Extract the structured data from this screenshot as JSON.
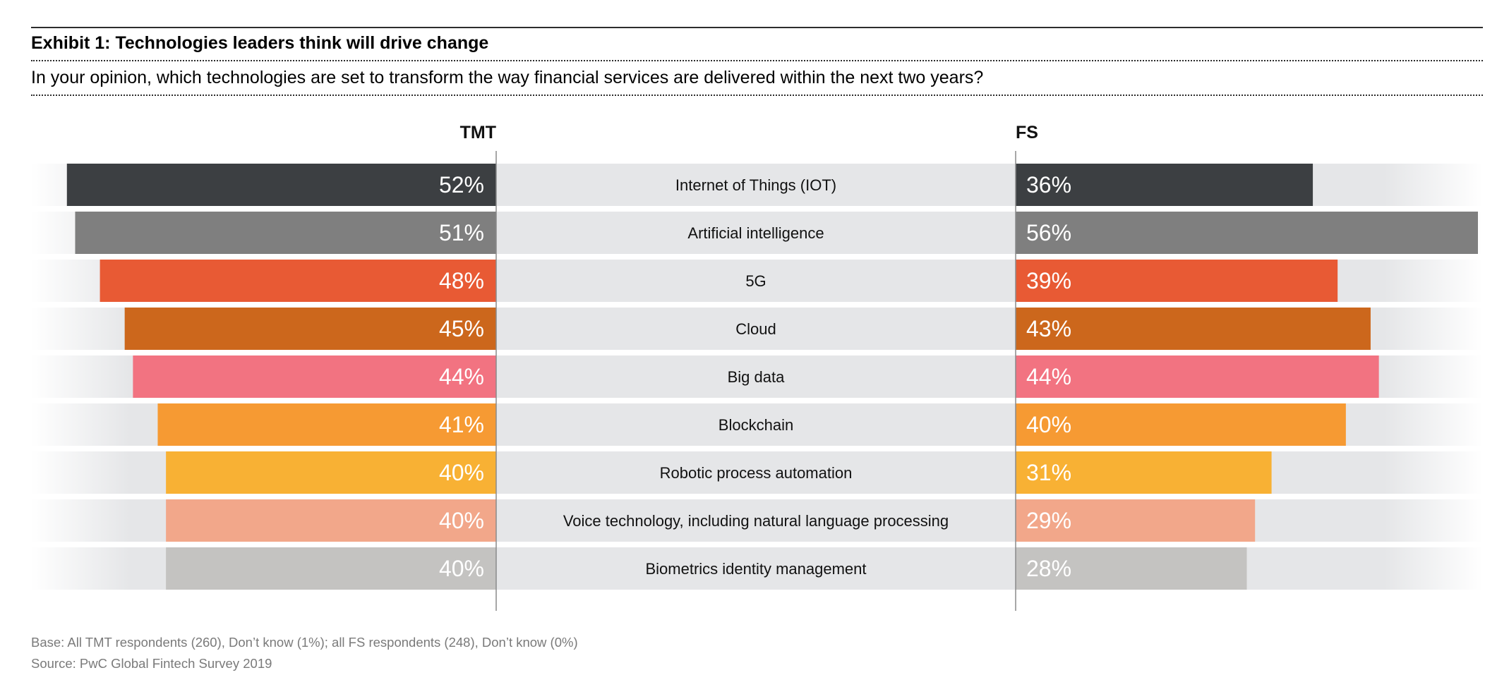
{
  "exhibit": {
    "title": "Exhibit 1: Technologies leaders think will drive change",
    "question": "In your opinion, which technologies are set to transform the way financial services are delivered within the next two years?"
  },
  "chart_data": {
    "type": "bar",
    "title": "Exhibit 1: Technologies leaders think will drive change",
    "subtitle": "In your opinion, which technologies are set to transform the way financial services are delivered within the next two years?",
    "orientation": "horizontal-butterfly",
    "value_format": "percent",
    "xlim": [
      0,
      56
    ],
    "categories": [
      "Internet of Things (IOT)",
      "Artificial intelligence",
      "5G",
      "Cloud",
      "Big data",
      "Blockchain",
      "Robotic process automation",
      "Voice technology, including natural language processing",
      "Biometrics identity management"
    ],
    "series": [
      {
        "name": "TMT",
        "side": "left",
        "values": [
          52,
          51,
          48,
          45,
          44,
          41,
          40,
          40,
          40
        ]
      },
      {
        "name": "FS",
        "side": "right",
        "values": [
          36,
          56,
          39,
          43,
          44,
          40,
          31,
          29,
          28
        ]
      }
    ],
    "bar_colors": [
      "#3c3f42",
      "#7f7f7f",
      "#e85a34",
      "#cc671c",
      "#f27381",
      "#f69a33",
      "#f8b134",
      "#f2a78a",
      "#c4c3c1"
    ],
    "row_band_color": "#e5e6e8",
    "divider_color": "#8a8a8a"
  },
  "footer": {
    "base": "Base: All TMT respondents (260), Don’t know (1%); all FS respondents (248), Don’t know (0%)",
    "source": "Source: PwC Global Fintech Survey 2019"
  }
}
